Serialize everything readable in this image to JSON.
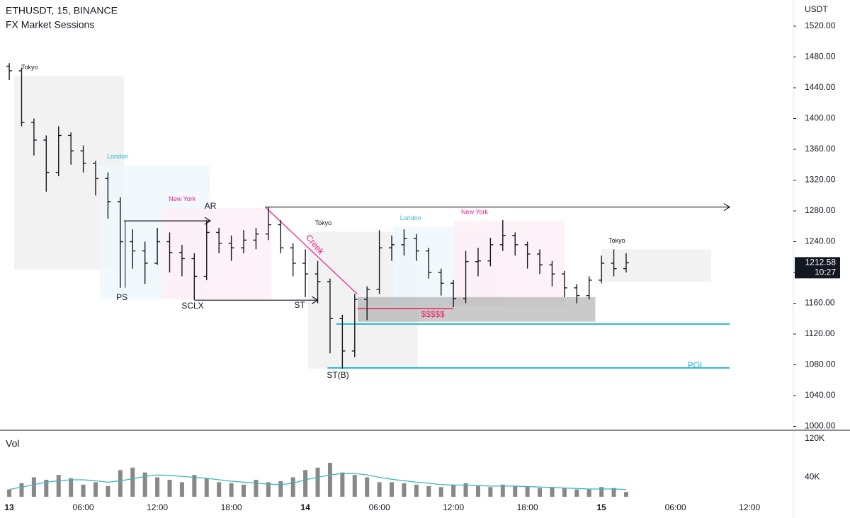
{
  "chart_data": {
    "type": "ohlc",
    "title": "ETHUSDT, 15, BINANCE",
    "subtitle": "FX Market Sessions",
    "y_axis_label": "USDT",
    "open": [
      1468,
      1462,
      1395,
      1372,
      1330,
      1378,
      1358,
      1342,
      1322,
      1292,
      1240,
      1228,
      1212,
      1240,
      1226,
      1218,
      1195,
      1252,
      1238,
      1232,
      1242,
      1250,
      1262,
      1232,
      1212,
      1198,
      1188,
      1140,
      1098,
      1165,
      1178,
      1232,
      1236,
      1244,
      1228,
      1200,
      1186,
      1166,
      1214,
      1215,
      1236,
      1248,
      1236,
      1224,
      1210,
      1198,
      1180,
      1170,
      1190,
      1212,
      1205
    ],
    "high": [
      1472,
      1466,
      1400,
      1378,
      1390,
      1382,
      1365,
      1345,
      1330,
      1298,
      1256,
      1240,
      1258,
      1252,
      1236,
      1225,
      1268,
      1258,
      1248,
      1255,
      1258,
      1285,
      1268,
      1238,
      1230,
      1215,
      1192,
      1145,
      1172,
      1182,
      1255,
      1248,
      1256,
      1250,
      1232,
      1205,
      1190,
      1228,
      1232,
      1245,
      1268,
      1252,
      1240,
      1230,
      1215,
      1202,
      1185,
      1195,
      1222,
      1230,
      1225
    ],
    "low": [
      1450,
      1390,
      1352,
      1305,
      1325,
      1340,
      1330,
      1300,
      1270,
      1180,
      1205,
      1185,
      1210,
      1200,
      1195,
      1165,
      1190,
      1225,
      1215,
      1225,
      1230,
      1242,
      1225,
      1195,
      1168,
      1160,
      1095,
      1075,
      1090,
      1138,
      1172,
      1215,
      1222,
      1215,
      1192,
      1170,
      1155,
      1160,
      1195,
      1208,
      1228,
      1222,
      1205,
      1198,
      1182,
      1168,
      1160,
      1165,
      1186,
      1195,
      1200
    ],
    "close": [
      1462,
      1395,
      1372,
      1330,
      1378,
      1358,
      1342,
      1322,
      1292,
      1240,
      1228,
      1212,
      1240,
      1226,
      1218,
      1195,
      1252,
      1238,
      1232,
      1242,
      1250,
      1262,
      1232,
      1212,
      1198,
      1188,
      1140,
      1098,
      1165,
      1178,
      1232,
      1236,
      1244,
      1228,
      1200,
      1186,
      1166,
      1214,
      1215,
      1236,
      1248,
      1236,
      1224,
      1210,
      1198,
      1180,
      1170,
      1190,
      1212,
      1205,
      1212.58
    ],
    "last_price": 1212.58,
    "countdown": "10:27",
    "ylim": [
      995,
      1554
    ],
    "yticks": [
      {
        "value": 1000,
        "label": "1000.00"
      },
      {
        "value": 1040,
        "label": "1040.00"
      },
      {
        "value": 1080,
        "label": "1080.00"
      },
      {
        "value": 1120,
        "label": "1120.00"
      },
      {
        "value": 1160,
        "label": "1160.00"
      },
      {
        "value": 1200,
        "label": "1200.00"
      },
      {
        "value": 1240,
        "label": "1240.00"
      },
      {
        "value": 1280,
        "label": "1280.00"
      },
      {
        "value": 1320,
        "label": "1320.00"
      },
      {
        "value": 1360,
        "label": "1360.00"
      },
      {
        "value": 1400,
        "label": "1400.00"
      },
      {
        "value": 1440,
        "label": "1440.00"
      },
      {
        "value": 1480,
        "label": "1480.00"
      },
      {
        "value": 1520,
        "label": "1520.00"
      }
    ],
    "xlim": [
      -0.75,
      63.55
    ],
    "xticks": [
      {
        "value": 0,
        "label": "13"
      },
      {
        "value": 6,
        "label": "06:00"
      },
      {
        "value": 12,
        "label": "12:00"
      },
      {
        "value": 18,
        "label": "18:00"
      },
      {
        "value": 24,
        "label": "14"
      },
      {
        "value": 30,
        "label": "06:00"
      },
      {
        "value": 36,
        "label": "12:00"
      },
      {
        "value": 42,
        "label": "18:00"
      },
      {
        "value": 48,
        "label": "15"
      },
      {
        "value": 54,
        "label": "06:00"
      },
      {
        "value": 60,
        "label": "12:00"
      }
    ],
    "volume": {
      "label": "Vol",
      "color": "#888888",
      "ma_color": "#3bb3c3",
      "values": [
        15000,
        28000,
        40000,
        35000,
        45000,
        38000,
        25000,
        30000,
        22000,
        55000,
        60000,
        50000,
        40000,
        35000,
        30000,
        45000,
        38000,
        30000,
        28000,
        25000,
        35000,
        30000,
        32000,
        40000,
        55000,
        60000,
        70000,
        50000,
        45000,
        40000,
        30000,
        30000,
        28000,
        25000,
        22000,
        20000,
        25000,
        28000,
        22000,
        20000,
        25000,
        22000,
        20000,
        18000,
        20000,
        18000,
        15000,
        15000,
        20000,
        18000,
        10000
      ],
      "ma": [
        15000,
        20000,
        25000,
        30000,
        33000,
        35000,
        35000,
        33000,
        30000,
        33000,
        37000,
        42000,
        45000,
        44000,
        42000,
        40000,
        38000,
        35000,
        32000,
        30000,
        28000,
        26000,
        25000,
        28000,
        35000,
        40000,
        45000,
        48000,
        48000,
        45000,
        40000,
        36000,
        33000,
        30000,
        28000,
        25000,
        24000,
        24000,
        23000,
        22000,
        22000,
        22000,
        21000,
        20000,
        19000,
        18000,
        17000,
        16000,
        16000,
        16000,
        15000
      ],
      "ylim": [
        0,
        134000
      ],
      "yticks": [
        {
          "value": 40000,
          "label": "40K"
        },
        {
          "value": 120000,
          "label": "120K"
        }
      ]
    },
    "sessions": [
      {
        "label": "Tokyo",
        "start": 0.4,
        "end": 9.3,
        "high": 1455,
        "low": 1204,
        "kind": "tokyo"
      },
      {
        "label": "London",
        "start": 7.35,
        "end": 16.25,
        "high": 1339,
        "low": 1165,
        "kind": "london"
      },
      {
        "label": "New York",
        "start": 12.35,
        "end": 21.25,
        "high": 1284,
        "low": 1165,
        "kind": "newyork"
      },
      {
        "label": "Tokyo",
        "start": 24.2,
        "end": 33.1,
        "high": 1253,
        "low": 1075,
        "kind": "tokyo"
      },
      {
        "label": "London",
        "start": 31.1,
        "end": 40,
        "high": 1259,
        "low": 1156,
        "kind": "london"
      },
      {
        "label": "New York",
        "start": 36.05,
        "end": 45,
        "high": 1267,
        "low": 1156,
        "kind": "newyork"
      },
      {
        "label": "Tokyo",
        "start": 48,
        "end": 56.9,
        "high": 1230,
        "low": 1188,
        "kind": "tokyo"
      }
    ],
    "annotations": {
      "ps": "PS",
      "sclx": "SCLX",
      "ar": "AR",
      "st": "ST",
      "stb": "ST(B)",
      "creek": "Creek",
      "liquidity": "$$$$$",
      "poi": "POI"
    }
  }
}
